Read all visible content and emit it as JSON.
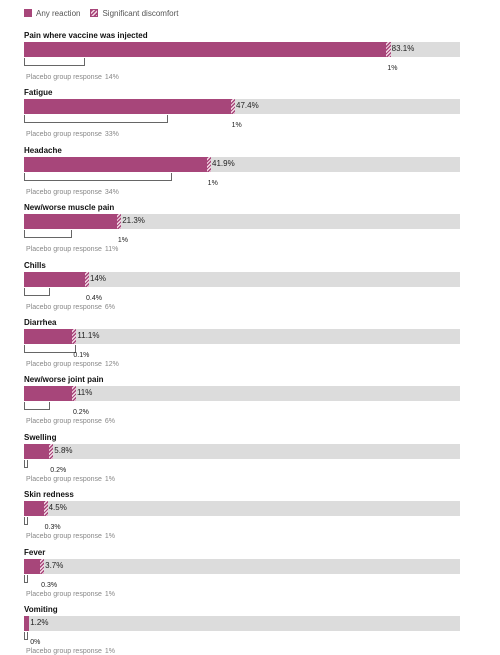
{
  "legend": {
    "any_label": "Any reaction",
    "sig_label": "Significant discomfort",
    "colors": {
      "any": "#a7467a",
      "track": "#dcdcdc"
    }
  },
  "chart_data": {
    "type": "bar",
    "orientation": "horizontal",
    "xlim": [
      0,
      100
    ],
    "placebo_prefix": "Placebo group response",
    "legend": [
      "Any reaction",
      "Significant discomfort"
    ],
    "categories": [
      "Pain where vaccine was injected",
      "Fatigue",
      "Headache",
      "New/worse muscle pain",
      "Chills",
      "Diarrhea",
      "New/worse joint pain",
      "Swelling",
      "Skin redness",
      "Fever",
      "Vomiting"
    ],
    "series": [
      {
        "name": "Any reaction",
        "values": [
          83.1,
          47.4,
          41.9,
          21.3,
          14,
          11.1,
          11,
          5.8,
          4.5,
          3.7,
          1.2
        ],
        "labels": [
          "83.1%",
          "47.4%",
          "41.9%",
          "21.3%",
          "14%",
          "11.1%",
          "11%",
          "5.8%",
          "4.5%",
          "3.7%",
          "1.2%"
        ]
      },
      {
        "name": "Significant discomfort",
        "values": [
          1,
          1,
          1,
          1,
          0.4,
          0.1,
          0.2,
          0.2,
          0.3,
          0.3,
          0
        ],
        "labels": [
          "1%",
          "1%",
          "1%",
          "1%",
          "0.4%",
          "0.1%",
          "0.2%",
          "0.2%",
          "0.3%",
          "0.3%",
          "0%"
        ]
      },
      {
        "name": "Placebo group response",
        "values": [
          14,
          33,
          34,
          11,
          6,
          12,
          6,
          1,
          1,
          1,
          1
        ],
        "labels": [
          "14%",
          "33%",
          "34%",
          "11%",
          "6%",
          "12%",
          "6%",
          "1%",
          "1%",
          "1%",
          "1%"
        ]
      }
    ]
  }
}
